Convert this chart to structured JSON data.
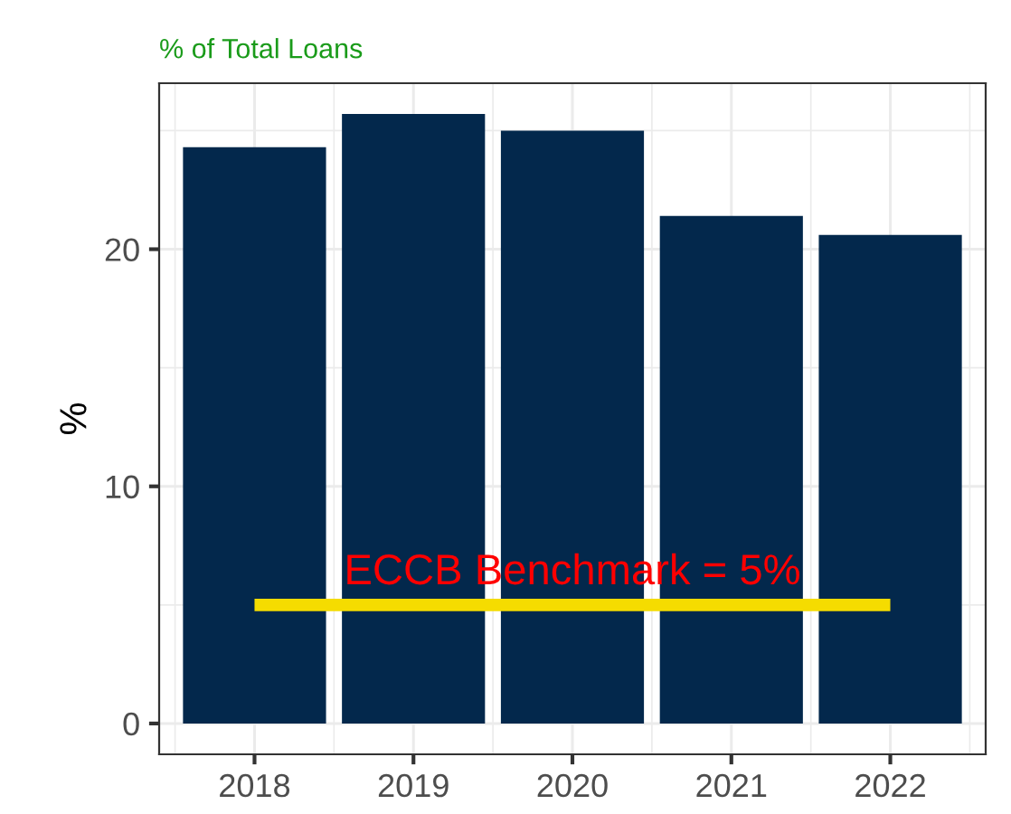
{
  "chart_data": {
    "type": "bar",
    "title": "% of Total Loans",
    "ylabel": "%",
    "categories": [
      "2018",
      "2019",
      "2020",
      "2021",
      "2022"
    ],
    "values": [
      24.3,
      25.7,
      25.0,
      21.4,
      20.6
    ],
    "color": "#03284c",
    "ylim": [
      -1.3,
      27.0
    ],
    "yticks": [
      0,
      10,
      20
    ],
    "grid": true,
    "ref_lines": [
      {
        "axis": "y",
        "value": 5,
        "label": "ECCB Benchmark = 5%",
        "color": "#f5dc00"
      }
    ]
  }
}
